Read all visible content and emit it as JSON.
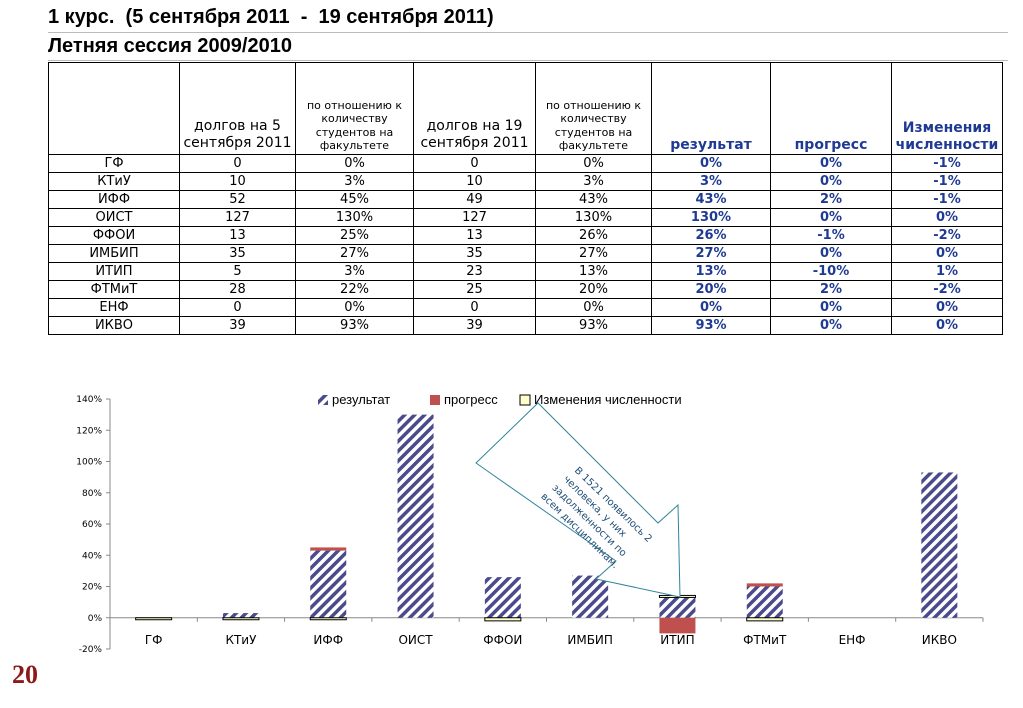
{
  "header": {
    "title": "1 курс.  (5 сентября 2011  -  19 сентября 2011)",
    "subtitle": "Летняя сессия 2009/2010"
  },
  "table": {
    "columns": [
      "",
      "долгов на 5 сентября 2011",
      "по отношению к количеству студентов на факультете",
      "долгов на 19 сентября 2011",
      "по отношению к количеству студентов на факультете",
      "результат",
      "прогресс",
      "Изменения численности"
    ],
    "rows": [
      [
        "ГФ",
        "0",
        "0%",
        "0",
        "0%",
        "0%",
        "0%",
        "-1%"
      ],
      [
        "КТиУ",
        "10",
        "3%",
        "10",
        "3%",
        "3%",
        "0%",
        "-1%"
      ],
      [
        "ИФФ",
        "52",
        "45%",
        "49",
        "43%",
        "43%",
        "2%",
        "-1%"
      ],
      [
        "ОИСТ",
        "127",
        "130%",
        "127",
        "130%",
        "130%",
        "0%",
        "0%"
      ],
      [
        "ФФОИ",
        "13",
        "25%",
        "13",
        "26%",
        "26%",
        "-1%",
        "-2%"
      ],
      [
        "ИМБИП",
        "35",
        "27%",
        "35",
        "27%",
        "27%",
        "0%",
        "0%"
      ],
      [
        "ИТИП",
        "5",
        "3%",
        "23",
        "13%",
        "13%",
        "-10%",
        "1%"
      ],
      [
        "ФТМиТ",
        "28",
        "22%",
        "25",
        "20%",
        "20%",
        "2%",
        "-2%"
      ],
      [
        "ЕНФ",
        "0",
        "0%",
        "0",
        "0%",
        "0%",
        "0%",
        "0%"
      ],
      [
        "ИКВО",
        "39",
        "93%",
        "39",
        "93%",
        "93%",
        "0%",
        "0%"
      ]
    ]
  },
  "chart_data": {
    "type": "bar",
    "stacked": true,
    "categories": [
      "ГФ",
      "КТиУ",
      "ИФФ",
      "ОИСТ",
      "ФФОИ",
      "ИМБИП",
      "ИТИП",
      "ФТМиТ",
      "ЕНФ",
      "ИКВО"
    ],
    "series": [
      {
        "name": "результат",
        "values": [
          0,
          3,
          43,
          130,
          26,
          27,
          13,
          20,
          0,
          93
        ],
        "color": "#4a4a8c",
        "pattern": "diagonal-hatch"
      },
      {
        "name": "прогресс",
        "values": [
          0,
          0,
          2,
          0,
          -1,
          0,
          -10,
          2,
          0,
          0
        ],
        "color": "#c0504d"
      },
      {
        "name": "Изменения численности",
        "values": [
          -1,
          -1,
          -1,
          0,
          -2,
          0,
          1,
          -2,
          0,
          0
        ],
        "color": "#ffffcc"
      }
    ],
    "ylim": [
      -20,
      140
    ],
    "yticks": [
      "-20%",
      "0%",
      "20%",
      "40%",
      "60%",
      "80%",
      "100%",
      "120%",
      "140%"
    ],
    "legend": "top",
    "annotation": {
      "text": "В 1521 появилось 2 человека, у них задолженности по всем дисциплинам.",
      "target": "ИТИП"
    }
  },
  "footer": {
    "slide_number": "20"
  }
}
